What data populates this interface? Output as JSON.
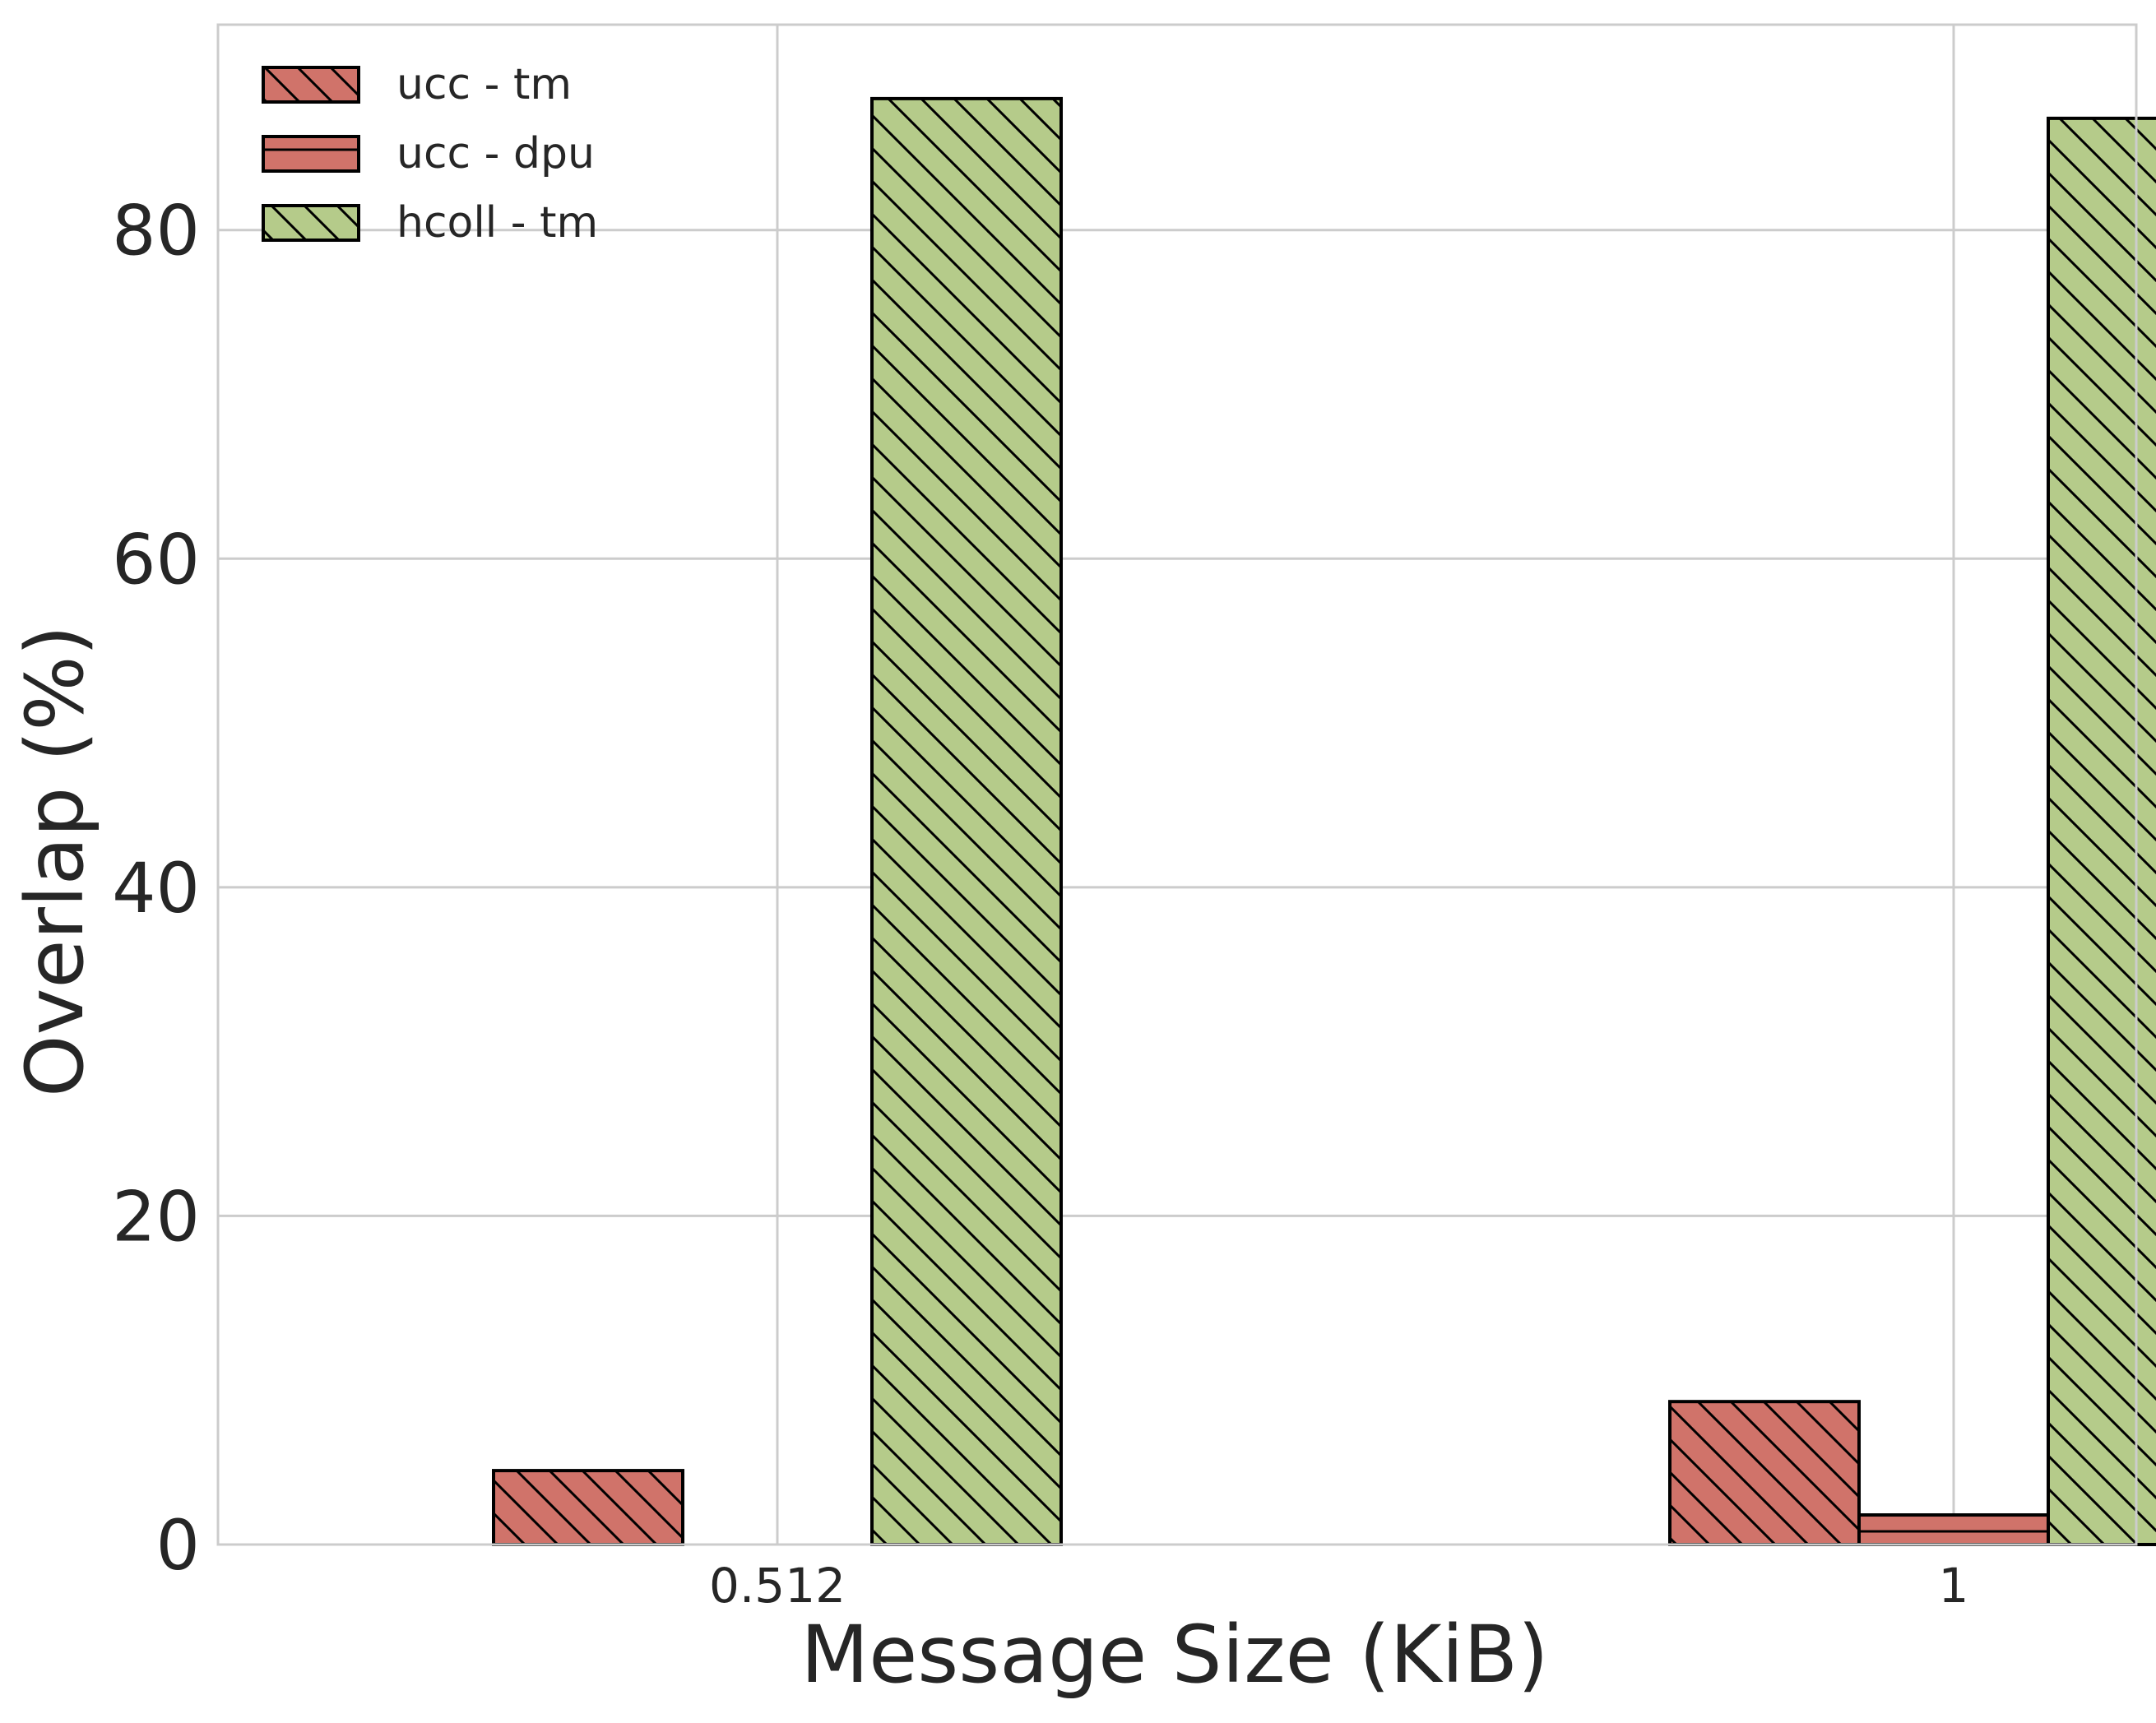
{
  "chart_data": {
    "type": "bar",
    "title": "",
    "xlabel": "Message Size (KiB)",
    "ylabel": "Overlap (%)",
    "categories": [
      "0.512",
      "1"
    ],
    "series": [
      {
        "name": "ucc - tm",
        "values": [
          4.5,
          8.7
        ],
        "color": "#d0736a",
        "hatch": "backslash"
      },
      {
        "name": "ucc - dpu",
        "values": [
          0.0,
          1.8
        ],
        "color": "#d0736a",
        "hatch": "horizontal"
      },
      {
        "name": "hcoll - tm",
        "values": [
          88.0,
          86.8
        ],
        "color": "#b5cb8a",
        "hatch": "backslash"
      }
    ],
    "ylim": [
      0,
      92.5
    ],
    "yticks": [
      0,
      20,
      40,
      60,
      80
    ],
    "grid": true,
    "legend": "top-left"
  }
}
